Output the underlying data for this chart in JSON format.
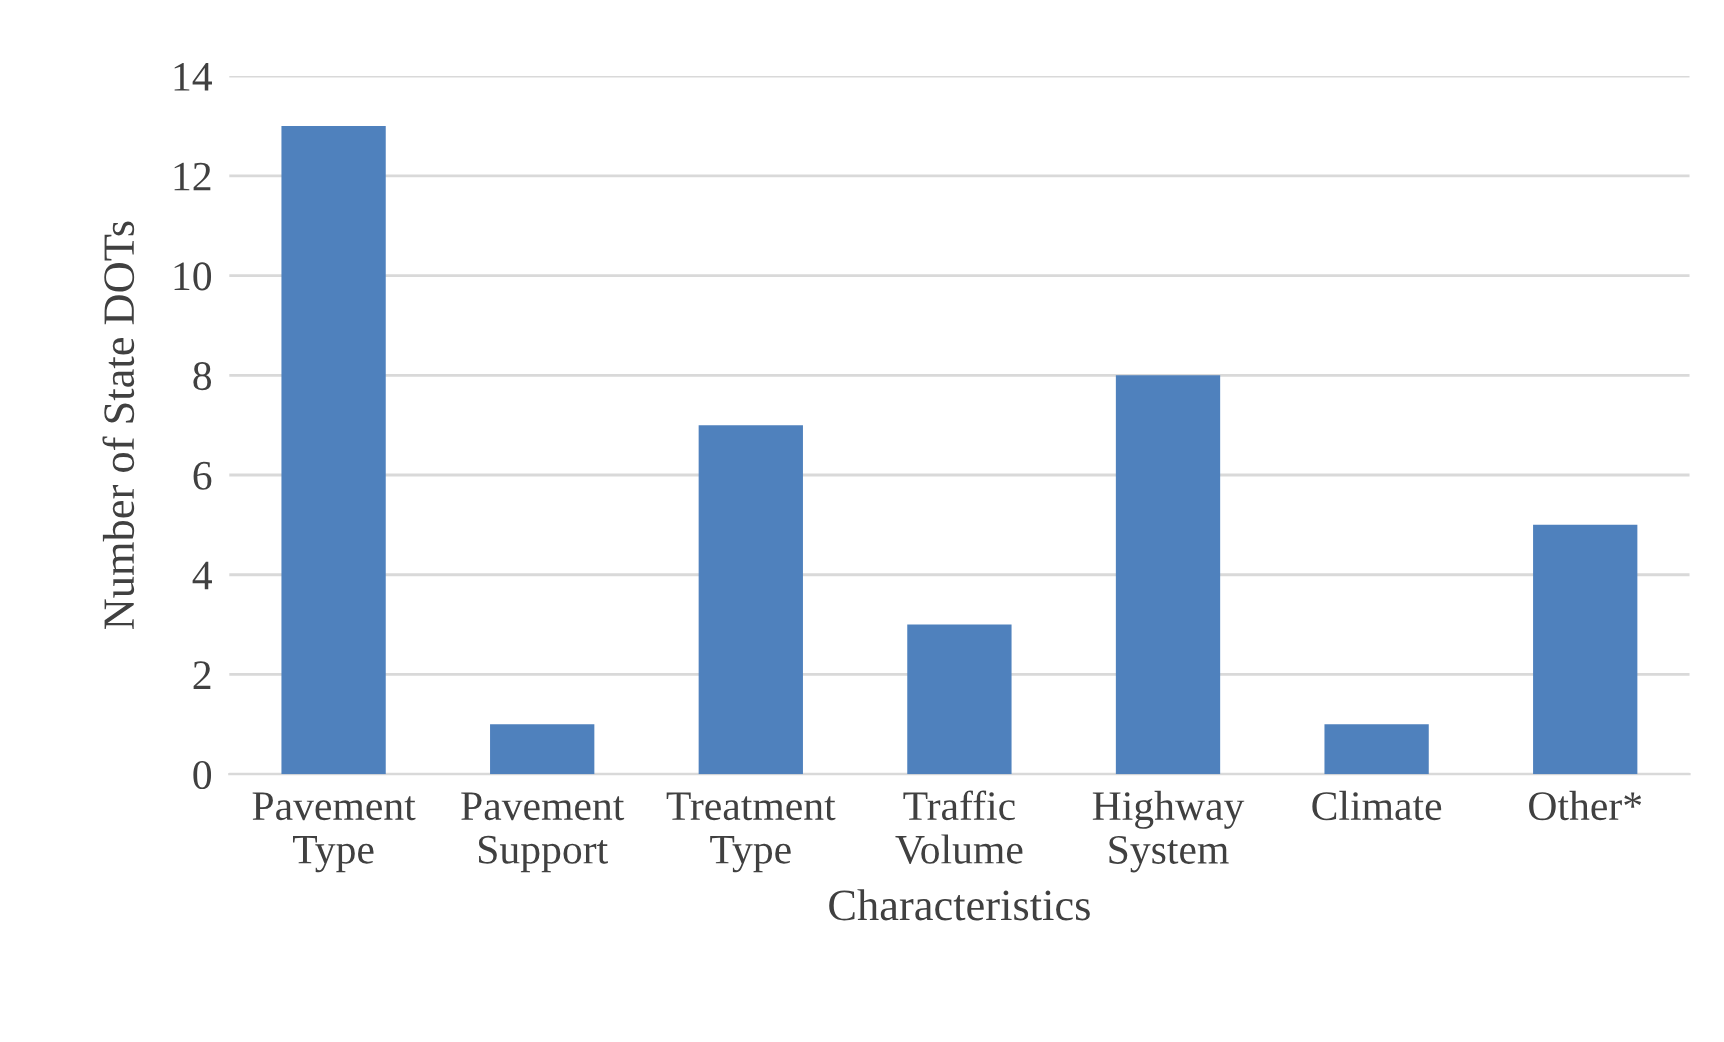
{
  "chart_data": {
    "type": "bar",
    "xlabel": "Characteristics",
    "ylabel": "Number of State DOTs",
    "categories": [
      "Pavement\nType",
      "Pavement\nSupport",
      "Treatment\nType",
      "Traffic\nVolume",
      "Highway\nSystem",
      "Climate",
      "Other*"
    ],
    "values": [
      13,
      1,
      7,
      3,
      8,
      1,
      5
    ],
    "color": "#4f81bd",
    "ylim": [
      0,
      14
    ],
    "yticks": [
      0,
      2,
      4,
      6,
      8,
      10,
      12,
      14
    ],
    "grid": "y"
  }
}
